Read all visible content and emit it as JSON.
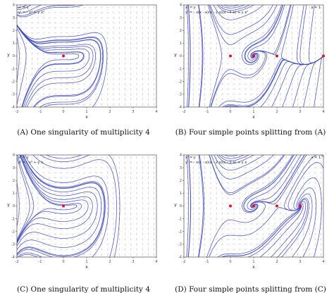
{
  "chart_data": [
    {
      "type": "phase_portrait",
      "panel": "A",
      "equations": [
        "x' = y",
        "y' = - x⁴ + y x²"
      ],
      "param_label": "",
      "xlabel": "x",
      "ylabel": "y",
      "xlim": [
        -2,
        4
      ],
      "ylim": [
        -4,
        4
      ],
      "xticks": [
        "-2",
        "-1",
        "0",
        "1",
        "2",
        "3",
        "4"
      ],
      "yticks": [
        "4",
        "3",
        "2",
        "1",
        "0",
        "-1",
        "-2",
        "-3",
        "-4"
      ],
      "equilibria": [
        {
          "x": 0,
          "y": 0
        }
      ],
      "caption": "(A) One singularity of multiplicity 4"
    },
    {
      "type": "phase_portrait",
      "panel": "B",
      "equations": [
        "x' = y",
        "y' = - x(x - a)(x - 2 a)(x - 4 a) + y x²"
      ],
      "param_label": "a = 1",
      "xlabel": "x",
      "ylabel": "y",
      "xlim": [
        -2,
        4
      ],
      "ylim": [
        -4,
        4
      ],
      "xticks": [
        "-2",
        "-1",
        "0",
        "1",
        "2",
        "3",
        "4"
      ],
      "yticks": [
        "4",
        "3",
        "2",
        "1",
        "0",
        "-1",
        "-2",
        "-3",
        "-4"
      ],
      "equilibria": [
        {
          "x": 0,
          "y": 0
        },
        {
          "x": 1,
          "y": 0
        },
        {
          "x": 2,
          "y": 0
        },
        {
          "x": 4,
          "y": 0
        }
      ],
      "caption": "(B) Four simple points splitting from (A)"
    },
    {
      "type": "phase_portrait",
      "panel": "C",
      "equations": [
        "x' = y",
        "y' = - x⁴ + y x"
      ],
      "param_label": "",
      "xlabel": "x",
      "ylabel": "y",
      "xlim": [
        -2,
        4
      ],
      "ylim": [
        -4,
        4
      ],
      "xticks": [
        "-2",
        "-1",
        "0",
        "1",
        "2",
        "3",
        "4"
      ],
      "yticks": [
        "4",
        "3",
        "2",
        "1",
        "0",
        "-1",
        "-2",
        "-3",
        "-4"
      ],
      "equilibria": [
        {
          "x": 0,
          "y": 0
        }
      ],
      "caption": "(C) One singularity of multiplicity 4"
    },
    {
      "type": "phase_portrait",
      "panel": "D",
      "equations": [
        "x' = y",
        "y' = - x(x - a)(x - 2 a)(x - 3 a) + y x"
      ],
      "param_label": "a = 1",
      "xlabel": "x",
      "ylabel": "y",
      "xlim": [
        -2,
        4
      ],
      "ylim": [
        -4,
        4
      ],
      "xticks": [
        "-2",
        "-1",
        "0",
        "1",
        "2",
        "3",
        "4"
      ],
      "yticks": [
        "4",
        "3",
        "2",
        "1",
        "0",
        "-1",
        "-2",
        "-3",
        "-4"
      ],
      "equilibria": [
        {
          "x": 0,
          "y": 0
        },
        {
          "x": 1,
          "y": 0
        },
        {
          "x": 2,
          "y": 0
        },
        {
          "x": 3,
          "y": 0
        }
      ],
      "caption": "(D) Four simple points splitting from (C)"
    }
  ],
  "colors": {
    "trajectory": "#3a44b8",
    "trajectory_light": "#8d93d6",
    "equilibrium": "#e0112b",
    "vector_field": "#b5b8c7",
    "axes": "#333333"
  }
}
